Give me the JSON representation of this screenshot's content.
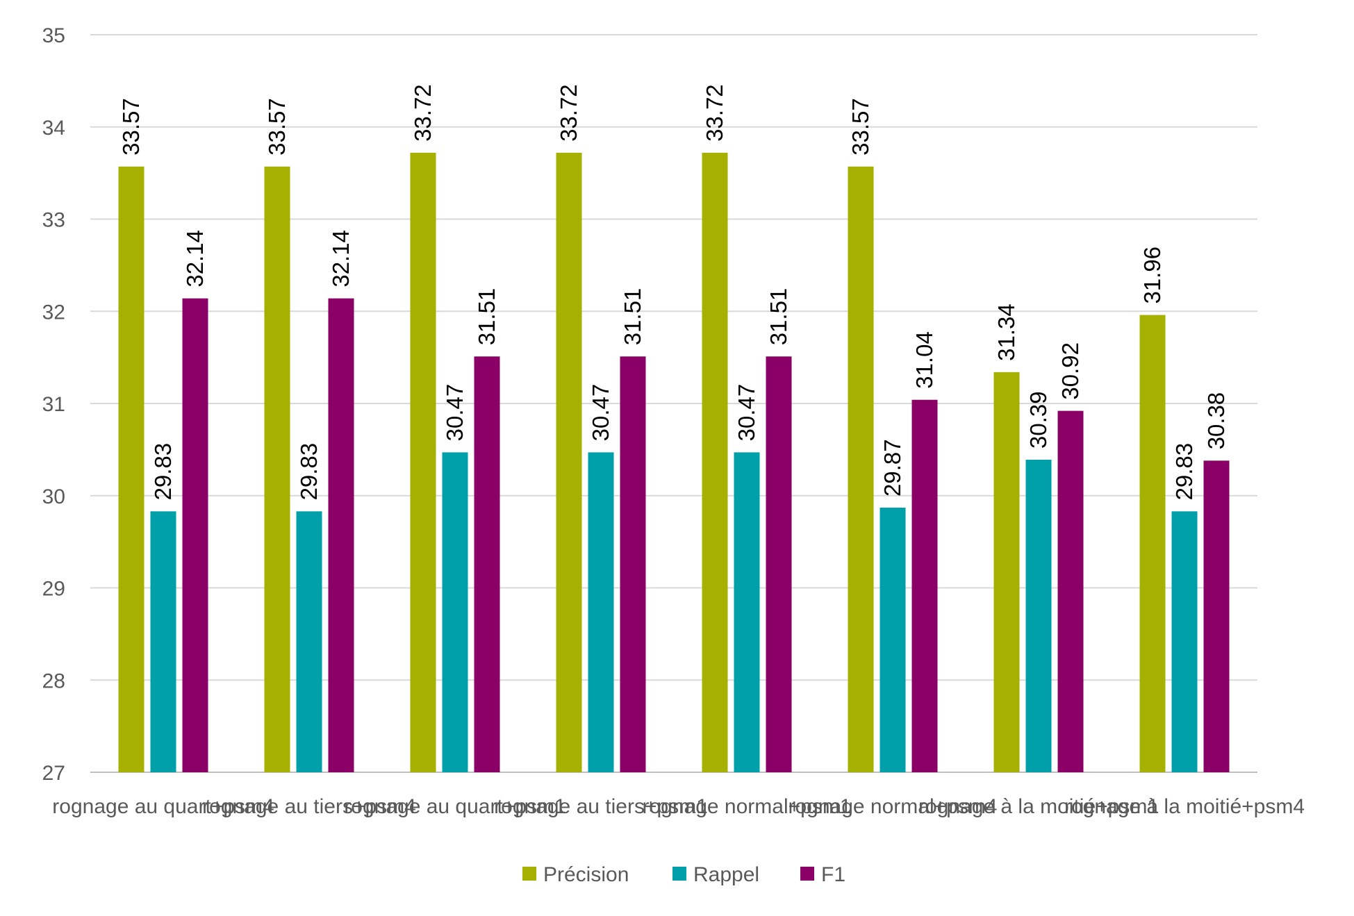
{
  "chart_data": {
    "type": "bar",
    "categories": [
      "rognage au quart+psm4",
      "rognage au tiers+psm4",
      "rognage au quart+psm1",
      "rognage au tiers+psm1",
      "rognage normal+psm1",
      "rognage normal+psm4",
      "rognage à la moitié+psm1",
      "rognage à la moitié+psm4"
    ],
    "series": [
      {
        "name": "Précision",
        "color": "#A5B000",
        "values": [
          33.57,
          33.57,
          33.72,
          33.72,
          33.72,
          33.57,
          31.34,
          31.96
        ]
      },
      {
        "name": "Rappel",
        "color": "#00A0AA",
        "values": [
          29.83,
          29.83,
          30.47,
          30.47,
          30.47,
          29.87,
          30.39,
          29.83
        ]
      },
      {
        "name": "F1",
        "color": "#8B0066",
        "values": [
          32.14,
          32.14,
          31.51,
          31.51,
          31.51,
          31.04,
          30.92,
          30.38
        ]
      }
    ],
    "ylim": [
      27,
      35
    ],
    "yticks": [
      27,
      28,
      29,
      30,
      31,
      32,
      33,
      34,
      35
    ],
    "grid": true,
    "legend": "bottom",
    "data_labels": true,
    "title": "",
    "xlabel": "",
    "ylabel": ""
  },
  "colors": {
    "grid": "#D9D9D9",
    "axis": "#BFBFBF",
    "text": "#595959"
  }
}
